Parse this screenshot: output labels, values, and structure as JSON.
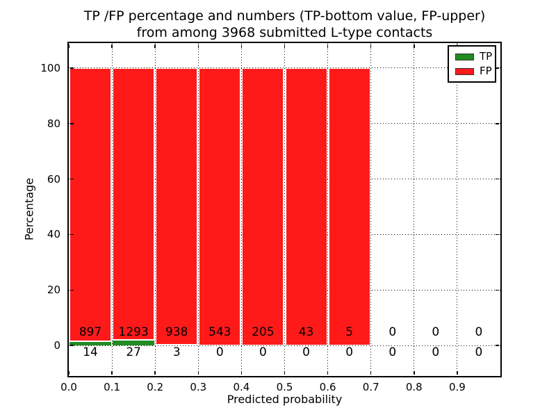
{
  "figure": {
    "title_line1": "TP /FP percentage and numbers (TP-bottom value, FP-upper)",
    "title_line2": "from among 3968 submitted L-type contacts"
  },
  "chart_data": {
    "type": "bar",
    "stacked": true,
    "title": "TP /FP percentage and numbers (TP-bottom value, FP-upper) from among 3968 submitted L-type contacts",
    "xlabel": "Predicted probability",
    "ylabel": "Percentage",
    "xlim": [
      0.0,
      1.0
    ],
    "ylim": [
      -11,
      109
    ],
    "bin_width": 0.1,
    "x_tick_labels": [
      "0.0",
      "0.1",
      "0.2",
      "0.3",
      "0.4",
      "0.5",
      "0.6",
      "0.7",
      "0.8",
      "0.9"
    ],
    "y_tick_values": [
      0,
      20,
      40,
      60,
      80,
      100
    ],
    "categories": [
      "0.0-0.1",
      "0.1-0.2",
      "0.2-0.3",
      "0.3-0.4",
      "0.4-0.5",
      "0.5-0.6",
      "0.6-0.7",
      "0.7-0.8",
      "0.8-0.9",
      "0.9-1.0"
    ],
    "series": [
      {
        "name": "TP",
        "color": "#228b22",
        "counts": [
          14,
          27,
          3,
          0,
          0,
          0,
          0,
          0,
          0,
          0
        ]
      },
      {
        "name": "FP",
        "color": "#ff1a1a",
        "counts": [
          897,
          1293,
          938,
          543,
          205,
          43,
          5,
          0,
          0,
          0
        ]
      }
    ],
    "bar_value_rule": "bar heights are TP/(TP+FP)*100 and FP/(TP+FP)*100 per bin; bins with zero total have no bar",
    "total_contacts": 3968,
    "legend": {
      "position": "upper right",
      "entries": [
        "TP",
        "FP"
      ]
    },
    "grid": "dotted"
  }
}
